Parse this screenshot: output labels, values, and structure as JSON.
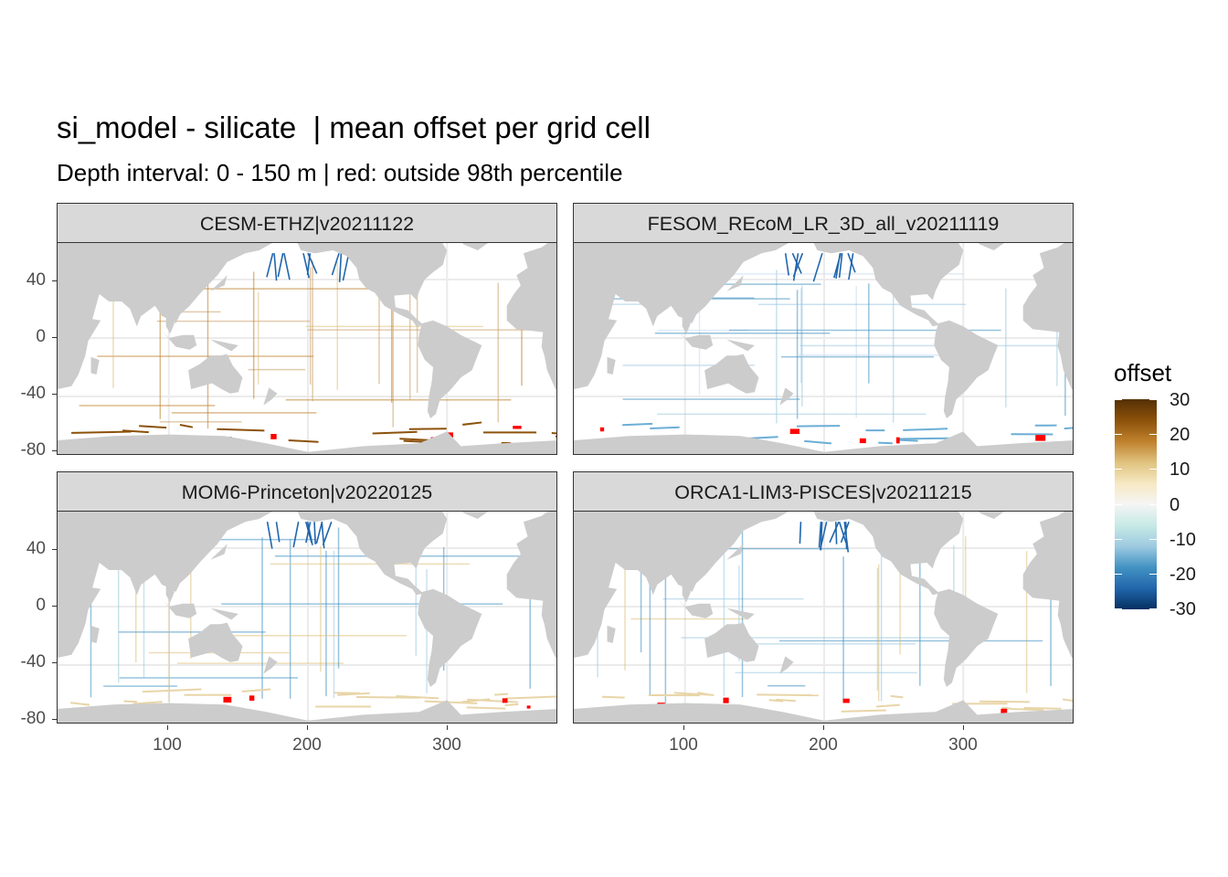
{
  "plot": {
    "title": "si_model - silicate  | mean offset per grid cell",
    "subtitle": "Depth interval: 0 - 150 m | red: outside 98th percentile"
  },
  "panels": [
    {
      "label": "CESM-ETHZ|v20211122",
      "tint": "brown"
    },
    {
      "label": "FESOM_REcoM_LR_3D_all_v20211119",
      "tint": "blue"
    },
    {
      "label": "MOM6-Princeton|v20220125",
      "tint": "mixed"
    },
    {
      "label": "ORCA1-LIM3-PISCES|v20211215",
      "tint": "mixed"
    }
  ],
  "axes": {
    "y_ticks": [
      "40",
      "0",
      "-40",
      "-80"
    ],
    "x_ticks": [
      "100",
      "200",
      "300"
    ]
  },
  "legend": {
    "title": "offset",
    "labels": [
      "30",
      "20",
      "10",
      "0",
      "-10",
      "-20",
      "-30"
    ],
    "colors": [
      "#543005",
      "#8c510a",
      "#bf812d",
      "#dfc27d",
      "#f6e8c3",
      "#f5f5f5",
      "#c7eae5",
      "#9ecae1",
      "#4393c3",
      "#2166ac",
      "#053061"
    ]
  },
  "colors": {
    "land": "#cccccc",
    "outlier": "#ff0000",
    "grid": "#ebebeb"
  }
}
